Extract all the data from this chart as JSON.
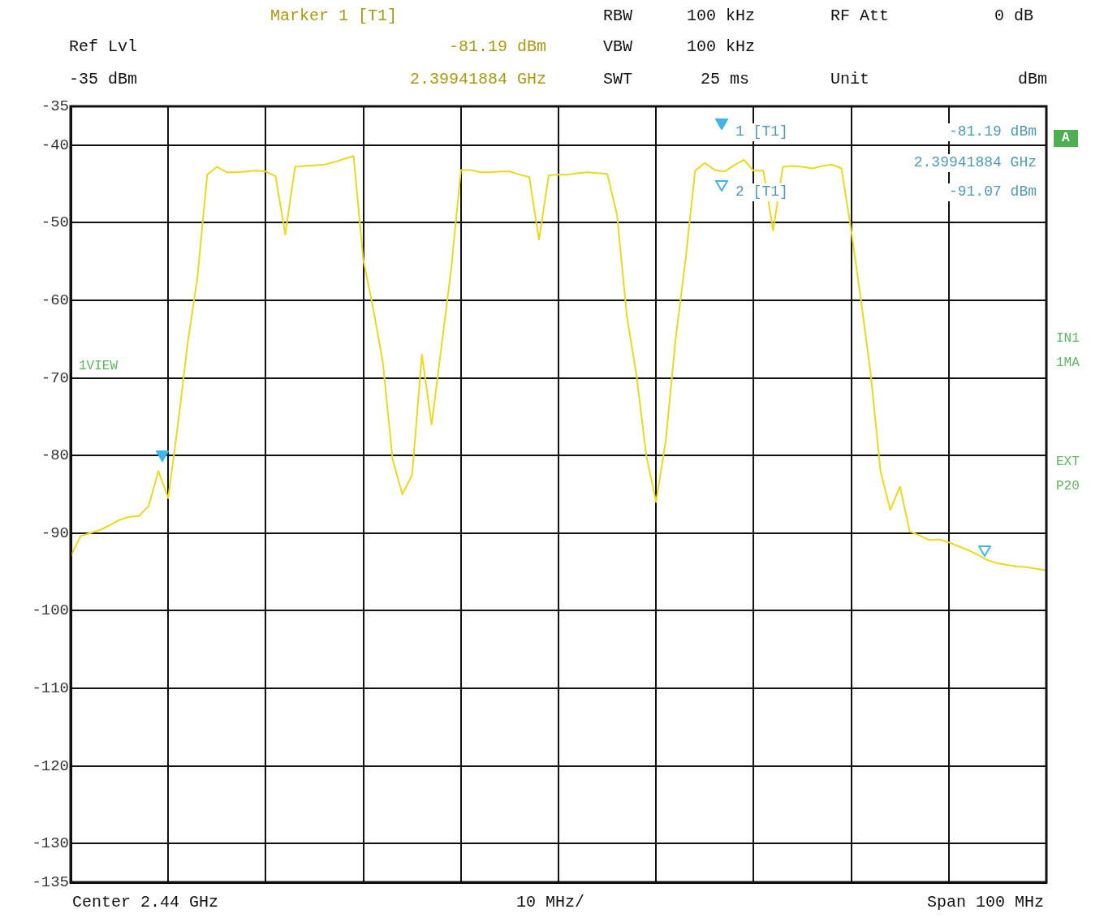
{
  "chart_data": {
    "type": "line",
    "categories": [
      null,
      null,
      null,
      null,
      null,
      null,
      null,
      null,
      null,
      null,
      null,
      null,
      null,
      null,
      null,
      null,
      null,
      null,
      null,
      null,
      null,
      null,
      null,
      null,
      null,
      null,
      null,
      null,
      null,
      null,
      null,
      null,
      null,
      null,
      null,
      null,
      null,
      null,
      null,
      null,
      null,
      null,
      null,
      null,
      null,
      null,
      null,
      null,
      null,
      null,
      null,
      null,
      null,
      null,
      null,
      null,
      null,
      null,
      null,
      null,
      null,
      null,
      null,
      null,
      null,
      null,
      null,
      null,
      null,
      null,
      null,
      null,
      null,
      null,
      null,
      null,
      null,
      null,
      null,
      null,
      null,
      null,
      null,
      null,
      null,
      null,
      null,
      null,
      null,
      null,
      null,
      null,
      null,
      null,
      null,
      null,
      null,
      null,
      null,
      null,
      null
    ],
    "ylim": [
      -135,
      -35
    ],
    "yticks": [
      -35,
      -40,
      -50,
      -60,
      -70,
      -80,
      -90,
      -100,
      -110,
      -120,
      -130,
      -135
    ],
    "grid": true,
    "tick_labels": "y",
    "legend": false,
    "marker": "none",
    "line_style": "solid",
    "series": [
      {
        "color": "#ecd81c",
        "values": [
          -93.0,
          -90.4,
          -90.0,
          -89.6,
          -89.0,
          -88.3,
          -87.9,
          -87.8,
          -86.5,
          -82.0,
          -85.5,
          -76,
          -65.5,
          -57,
          -43.8,
          -42.8,
          -43.5,
          -43.5,
          -43.4,
          -43.3,
          -43.4,
          -44,
          -51.5,
          -42.8,
          -42.7,
          -42.6,
          -42.5,
          -42.2,
          -41.8,
          -41.4,
          -54.8,
          -61.0,
          -68,
          -80.5,
          -85,
          -82.5,
          -67.0,
          -76,
          -66,
          -56,
          -43.2,
          -43.2,
          -43.5,
          -43.5,
          -43.4,
          -43.4,
          -43.8,
          -44.1,
          -52.2,
          -43.9,
          -43.8,
          -43.8,
          -43.6,
          -43.5,
          -43.6,
          -43.7,
          -49,
          -62,
          -69.7,
          -80,
          -86.0,
          -78,
          -65,
          -55,
          -43.3,
          -42.3,
          -43.2,
          -43.4,
          -42.6,
          -41.9,
          -43.3,
          -43.3,
          -51,
          -42.8,
          -42.7,
          -42.8,
          -43.0,
          -42.7,
          -42.5,
          -43.0,
          -51,
          -60,
          -69.5,
          -82,
          -87,
          -84,
          -89.8,
          -90.3,
          -90.9,
          -90.8,
          -91.2,
          -91.7,
          -92.2,
          -92.8,
          -93.5,
          -93.9,
          -94.1,
          -94.3,
          -94.4,
          -94.6,
          -94.8
        ]
      }
    ],
    "annotations": [
      "Ref Lvl",
      "-35 dBm",
      "Marker 1 [T1]",
      "-81.19 dBm",
      "2.39941884 GHz",
      "RBW",
      "100 kHz",
      "VBW",
      "100 kHz",
      "SWT",
      "25 ms",
      "RF Att",
      "0 dB",
      "Unit",
      "dBm",
      "1 [T1]",
      "-81.19 dBm",
      "2.39941884 GHz",
      "2 [T1]",
      "-91.07 dBm",
      "1VIEW",
      "A",
      "IN1",
      "1MA",
      "EXT",
      "P20",
      "Center 2.44 GHz",
      "10 MHz/",
      "Span 100 MHz"
    ]
  }
}
